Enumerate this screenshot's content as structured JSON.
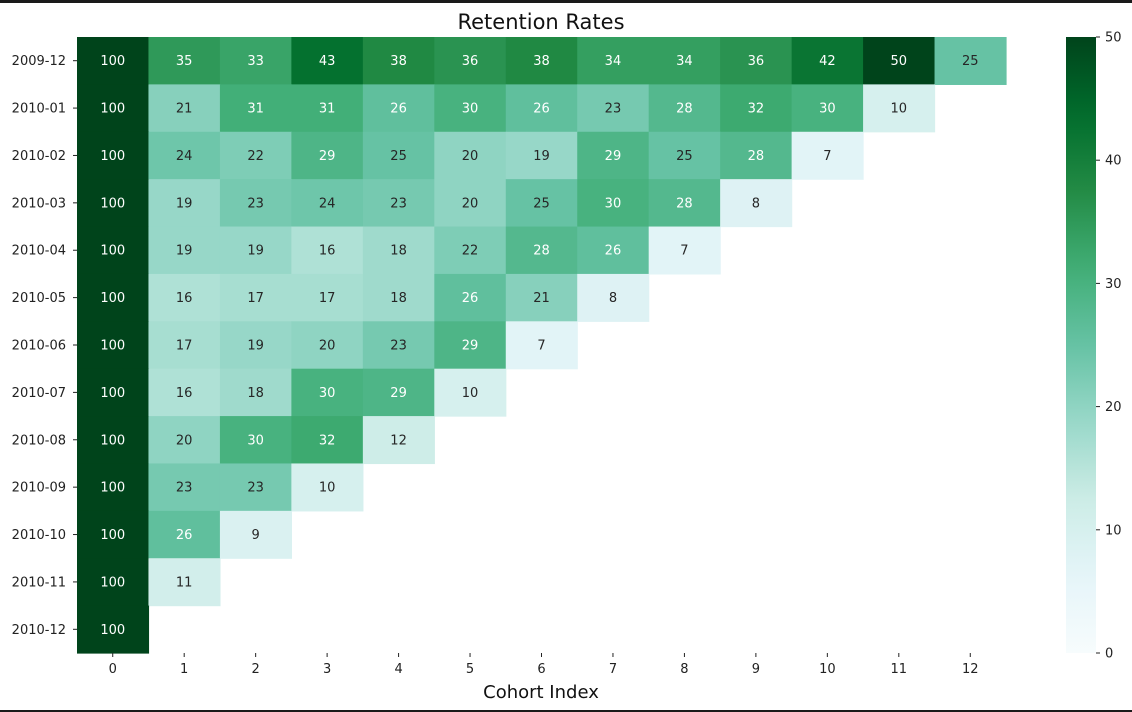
{
  "chart_data": {
    "type": "heatmap",
    "title": "Retention Rates",
    "xlabel": "Cohort Index",
    "ylabel": "",
    "x_categories": [
      "0",
      "1",
      "2",
      "3",
      "4",
      "5",
      "6",
      "7",
      "8",
      "9",
      "10",
      "11",
      "12"
    ],
    "y_categories": [
      "2009-12",
      "2010-01",
      "2010-02",
      "2010-03",
      "2010-04",
      "2010-05",
      "2010-06",
      "2010-07",
      "2010-08",
      "2010-09",
      "2010-10",
      "2010-11",
      "2010-12"
    ],
    "values": [
      [
        100,
        35,
        33,
        43,
        38,
        36,
        38,
        34,
        34,
        36,
        42,
        50,
        25
      ],
      [
        100,
        21,
        31,
        31,
        26,
        30,
        26,
        23,
        28,
        32,
        30,
        10
      ],
      [
        100,
        24,
        22,
        29,
        25,
        20,
        19,
        29,
        25,
        28,
        7
      ],
      [
        100,
        19,
        23,
        24,
        23,
        20,
        25,
        30,
        28,
        8
      ],
      [
        100,
        19,
        19,
        16,
        18,
        22,
        28,
        26,
        7
      ],
      [
        100,
        16,
        17,
        17,
        18,
        26,
        21,
        8
      ],
      [
        100,
        17,
        19,
        20,
        23,
        29,
        7
      ],
      [
        100,
        16,
        18,
        30,
        29,
        10
      ],
      [
        100,
        20,
        30,
        32,
        12
      ],
      [
        100,
        23,
        23,
        10
      ],
      [
        100,
        26,
        9
      ],
      [
        100,
        11
      ],
      [
        100
      ]
    ],
    "colorbar": {
      "colormap": "BuGn",
      "range": [
        0,
        50
      ],
      "ticks": [
        "0",
        "10",
        "20",
        "30",
        "40",
        "50"
      ]
    },
    "annotations": "cell values shown as integers",
    "grid": false
  }
}
